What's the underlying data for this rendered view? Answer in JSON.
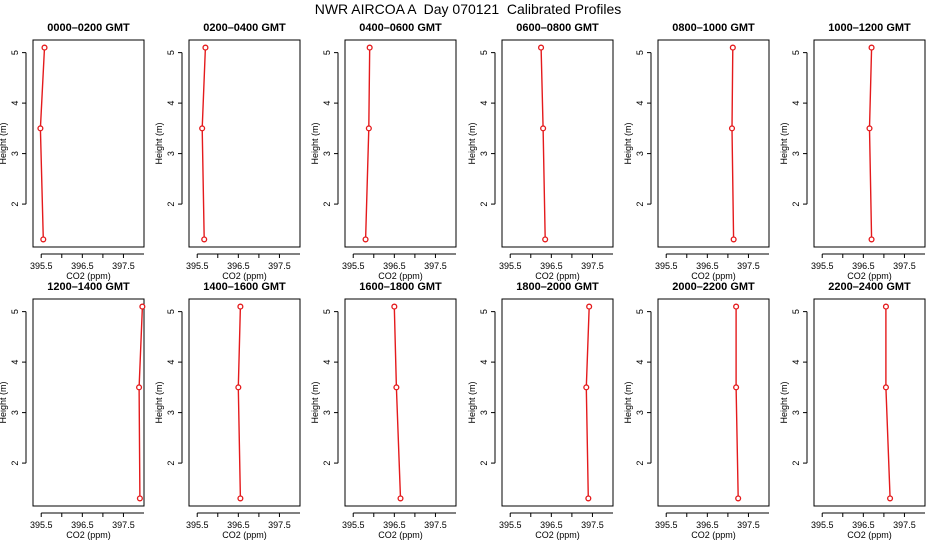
{
  "title": "NWR AIRCOA A  Day 070121  Calibrated Profiles",
  "colors": {
    "profile": "#e41a1c",
    "axis": "#000000"
  },
  "chart_data": [
    {
      "type": "line",
      "title": "0000–0200 GMT",
      "xlabel": "CO2 (ppm)",
      "ylabel": "Height (m)",
      "xlim": [
        395.3,
        398.0
      ],
      "ylim": [
        1.15,
        5.25
      ],
      "xticks": [
        395.5,
        396.5,
        397.5
      ],
      "xtick_labels": [
        "395.5",
        "396.5",
        "397.5"
      ],
      "yticks": [
        2,
        3,
        4,
        5
      ],
      "grid": false,
      "x": [
        395.55,
        395.48,
        395.58
      ],
      "y": [
        1.3,
        3.5,
        5.1
      ]
    },
    {
      "type": "line",
      "title": "0200–0400 GMT",
      "xlabel": "CO2 (ppm)",
      "ylabel": "Height (m)",
      "xlim": [
        395.3,
        398.0
      ],
      "ylim": [
        1.15,
        5.25
      ],
      "xticks": [
        395.5,
        396.5,
        397.5
      ],
      "xtick_labels": [
        "395.5",
        "396.5",
        "397.5"
      ],
      "yticks": [
        2,
        3,
        4,
        5
      ],
      "grid": false,
      "x": [
        395.67,
        395.62,
        395.7
      ],
      "y": [
        1.3,
        3.5,
        5.1
      ]
    },
    {
      "type": "line",
      "title": "0400–0600 GMT",
      "xlabel": "CO2 (ppm)",
      "ylabel": "Height (m)",
      "xlim": [
        395.3,
        398.0
      ],
      "ylim": [
        1.15,
        5.25
      ],
      "xticks": [
        395.5,
        396.5,
        397.5
      ],
      "xtick_labels": [
        "395.5",
        "396.5",
        "397.5"
      ],
      "yticks": [
        2,
        3,
        4,
        5
      ],
      "grid": false,
      "x": [
        395.8,
        395.88,
        395.9
      ],
      "y": [
        1.3,
        3.5,
        5.1
      ]
    },
    {
      "type": "line",
      "title": "0600–0800 GMT",
      "xlabel": "CO2 (ppm)",
      "ylabel": "Height (m)",
      "xlim": [
        395.3,
        398.0
      ],
      "ylim": [
        1.15,
        5.25
      ],
      "xticks": [
        395.5,
        396.5,
        397.5
      ],
      "xtick_labels": [
        "395.5",
        "396.5",
        "397.5"
      ],
      "yticks": [
        2,
        3,
        4,
        5
      ],
      "grid": false,
      "x": [
        396.35,
        396.3,
        396.25
      ],
      "y": [
        1.3,
        3.5,
        5.1
      ]
    },
    {
      "type": "line",
      "title": "0800–1000 GMT",
      "xlabel": "CO2 (ppm)",
      "ylabel": "Height (m)",
      "xlim": [
        395.3,
        398.0
      ],
      "ylim": [
        1.15,
        5.25
      ],
      "xticks": [
        395.5,
        396.5,
        397.5
      ],
      "xtick_labels": [
        "395.5",
        "396.5",
        "397.5"
      ],
      "yticks": [
        2,
        3,
        4,
        5
      ],
      "grid": false,
      "x": [
        397.14,
        397.1,
        397.12
      ],
      "y": [
        1.3,
        3.5,
        5.1
      ]
    },
    {
      "type": "line",
      "title": "1000–1200 GMT",
      "xlabel": "CO2 (ppm)",
      "ylabel": "Height (m)",
      "xlim": [
        395.3,
        398.0
      ],
      "ylim": [
        1.15,
        5.25
      ],
      "xticks": [
        395.5,
        396.5,
        397.5
      ],
      "xtick_labels": [
        "395.5",
        "396.5",
        "397.5"
      ],
      "yticks": [
        2,
        3,
        4,
        5
      ],
      "grid": false,
      "x": [
        396.7,
        396.65,
        396.7
      ],
      "y": [
        1.3,
        3.5,
        5.1
      ]
    },
    {
      "type": "line",
      "title": "1200–1400 GMT",
      "xlabel": "CO2 (ppm)",
      "ylabel": "Height (m)",
      "xlim": [
        395.3,
        398.0
      ],
      "ylim": [
        1.15,
        5.25
      ],
      "xticks": [
        395.5,
        396.5,
        397.5
      ],
      "xtick_labels": [
        "395.5",
        "396.5",
        "397.5"
      ],
      "yticks": [
        2,
        3,
        4,
        5
      ],
      "grid": false,
      "x": [
        397.9,
        397.88,
        397.96
      ],
      "y": [
        1.3,
        3.5,
        5.1
      ]
    },
    {
      "type": "line",
      "title": "1400–1600 GMT",
      "xlabel": "CO2 (ppm)",
      "ylabel": "Height (m)",
      "xlim": [
        395.3,
        398.0
      ],
      "ylim": [
        1.15,
        5.25
      ],
      "xticks": [
        395.5,
        396.5,
        397.5
      ],
      "xtick_labels": [
        "395.5",
        "396.5",
        "397.5"
      ],
      "yticks": [
        2,
        3,
        4,
        5
      ],
      "grid": false,
      "x": [
        396.55,
        396.5,
        396.55
      ],
      "y": [
        1.3,
        3.5,
        5.1
      ]
    },
    {
      "type": "line",
      "title": "1600–1800 GMT",
      "xlabel": "CO2 (ppm)",
      "ylabel": "Height (m)",
      "xlim": [
        395.3,
        398.0
      ],
      "ylim": [
        1.15,
        5.25
      ],
      "xticks": [
        395.5,
        396.5,
        397.5
      ],
      "xtick_labels": [
        "395.5",
        "396.5",
        "397.5"
      ],
      "yticks": [
        2,
        3,
        4,
        5
      ],
      "grid": false,
      "x": [
        396.65,
        396.55,
        396.5
      ],
      "y": [
        1.3,
        3.5,
        5.1
      ]
    },
    {
      "type": "line",
      "title": "1800–2000 GMT",
      "xlabel": "CO2 (ppm)",
      "ylabel": "Height (m)",
      "xlim": [
        395.3,
        398.0
      ],
      "ylim": [
        1.15,
        5.25
      ],
      "xticks": [
        395.5,
        396.5,
        397.5
      ],
      "xtick_labels": [
        "395.5",
        "396.5",
        "397.5"
      ],
      "yticks": [
        2,
        3,
        4,
        5
      ],
      "grid": false,
      "x": [
        397.4,
        397.35,
        397.42
      ],
      "y": [
        1.3,
        3.5,
        5.1
      ]
    },
    {
      "type": "line",
      "title": "2000–2200 GMT",
      "xlabel": "CO2 (ppm)",
      "ylabel": "Height (m)",
      "xlim": [
        395.3,
        398.0
      ],
      "ylim": [
        1.15,
        5.25
      ],
      "xticks": [
        395.5,
        396.5,
        397.5
      ],
      "xtick_labels": [
        "395.5",
        "396.5",
        "397.5"
      ],
      "yticks": [
        2,
        3,
        4,
        5
      ],
      "grid": false,
      "x": [
        397.25,
        397.2,
        397.2
      ],
      "y": [
        1.3,
        3.5,
        5.1
      ]
    },
    {
      "type": "line",
      "title": "2200–2400 GMT",
      "xlabel": "CO2 (ppm)",
      "ylabel": "Height (m)",
      "xlim": [
        395.3,
        398.0
      ],
      "ylim": [
        1.15,
        5.25
      ],
      "xticks": [
        395.5,
        396.5,
        397.5
      ],
      "xtick_labels": [
        "395.5",
        "396.5",
        "397.5"
      ],
      "yticks": [
        2,
        3,
        4,
        5
      ],
      "grid": false,
      "x": [
        397.15,
        397.05,
        397.05
      ],
      "y": [
        1.3,
        3.5,
        5.1
      ]
    }
  ]
}
